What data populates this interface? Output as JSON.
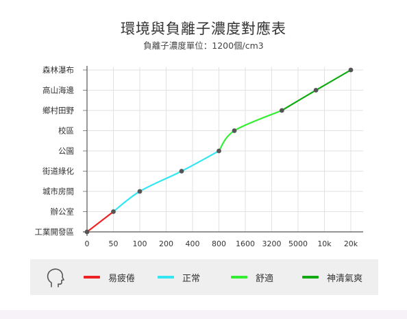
{
  "chart_data": {
    "type": "line",
    "title": "環境與負離子濃度對應表",
    "subtitle": "負離子濃度單位：1200個/cm3",
    "x_ticks": [
      "0",
      "50",
      "100",
      "200",
      "400",
      "800",
      "1600",
      "3200",
      "5000",
      "10k",
      "20k"
    ],
    "y_categories": [
      "工業開發區",
      "辦公室",
      "城市房間",
      "街道綠化",
      "公園",
      "校區",
      "鄉村田野",
      "高山海邊",
      "森林瀑布"
    ],
    "points": [
      {
        "x": "0",
        "y": "工業開發區"
      },
      {
        "x": "50",
        "y": "辦公室"
      },
      {
        "x": "100",
        "y": "城市房間"
      },
      {
        "x": "300",
        "y": "街道綠化"
      },
      {
        "x": "800",
        "y": "公園"
      },
      {
        "x": "1200",
        "y": "校區"
      },
      {
        "x": "3800",
        "y": "鄉村田野"
      },
      {
        "x": "8000",
        "y": "高山海邊"
      },
      {
        "x": "20k",
        "y": "森林瀑布"
      }
    ],
    "segments": [
      {
        "legend_index": 0,
        "from": 0,
        "to": 1
      },
      {
        "legend_index": 1,
        "from": 1,
        "to": 4
      },
      {
        "legend_index": 2,
        "from": 4,
        "to": 6
      },
      {
        "legend_index": 3,
        "from": 6,
        "to": 8
      }
    ],
    "legend": [
      {
        "label": "易疲倦",
        "color": "#ee2222"
      },
      {
        "label": "正常",
        "color": "#33e6f2"
      },
      {
        "label": "舒適",
        "color": "#33ee33"
      },
      {
        "label": "神清氣爽",
        "color": "#11aa11"
      }
    ],
    "legend_icon": "head-profile-icon",
    "grid": true
  }
}
